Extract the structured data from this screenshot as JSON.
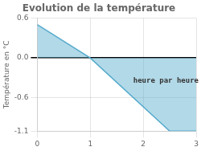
{
  "chart_data": {
    "type": "area",
    "title": "Evolution de la température",
    "ylabel": "Température en °C",
    "x": [
      0,
      1,
      2.5,
      3
    ],
    "values": [
      0.5,
      0.0,
      -1.1,
      -1.1
    ],
    "color": "#55aacc",
    "xlim": [
      0,
      3
    ],
    "ylim": [
      -1.1,
      0.6
    ],
    "xticks": [
      0,
      1,
      2,
      3
    ],
    "yticks": [
      -1.1,
      -0.6,
      {
        "value": 0,
        "label": "0.0"
      },
      0.6
    ],
    "grid": true,
    "annotations": [
      {
        "text": "heure par heure",
        "x": 2.1,
        "y": -0.35
      }
    ]
  }
}
